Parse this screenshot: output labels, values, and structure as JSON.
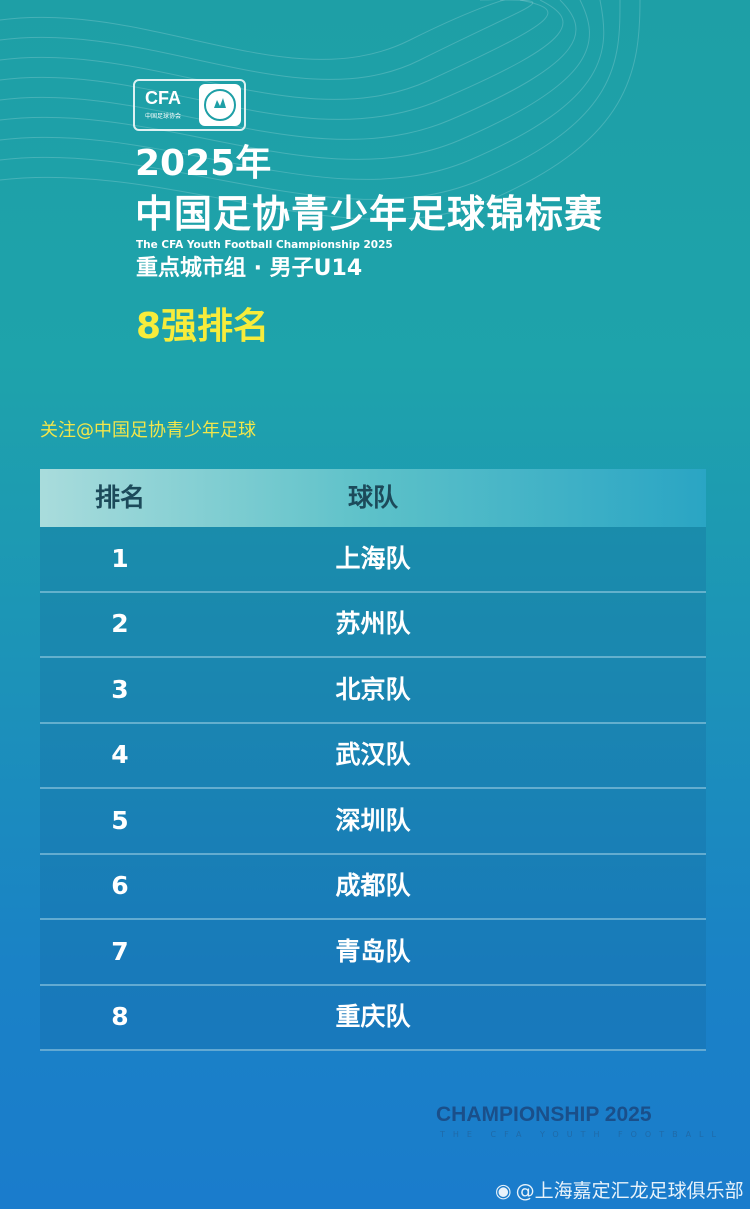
{
  "logo": {
    "brand": "CFA",
    "subtitle": "中国足球协会"
  },
  "header": {
    "year": "2025年",
    "title": "中国足协青少年足球锦标赛",
    "english": "The CFA Youth Football Championship 2025",
    "group": "重点城市组 · 男子U14",
    "ranking_title": "8强排名"
  },
  "follow": "关注@中国足协青少年足球",
  "table": {
    "headers": [
      "排名",
      "球队"
    ],
    "rows": [
      {
        "rank": "1",
        "team": "上海队"
      },
      {
        "rank": "2",
        "team": "苏州队"
      },
      {
        "rank": "3",
        "team": "北京队"
      },
      {
        "rank": "4",
        "team": "武汉队"
      },
      {
        "rank": "5",
        "team": "深圳队"
      },
      {
        "rank": "6",
        "team": "成都队"
      },
      {
        "rank": "7",
        "team": "青岛队"
      },
      {
        "rank": "8",
        "team": "重庆队"
      }
    ]
  },
  "footer": {
    "championship": "CHAMPIONSHIP 2025",
    "sub": "THE CFA YOUTH FOOTBALL"
  },
  "watermark": "@上海嘉定汇龙足球俱乐部",
  "colors": {
    "accent_yellow": "#f7ec3b",
    "bg_top": "#1e9fa6",
    "bg_bottom": "#1a7ccc"
  }
}
